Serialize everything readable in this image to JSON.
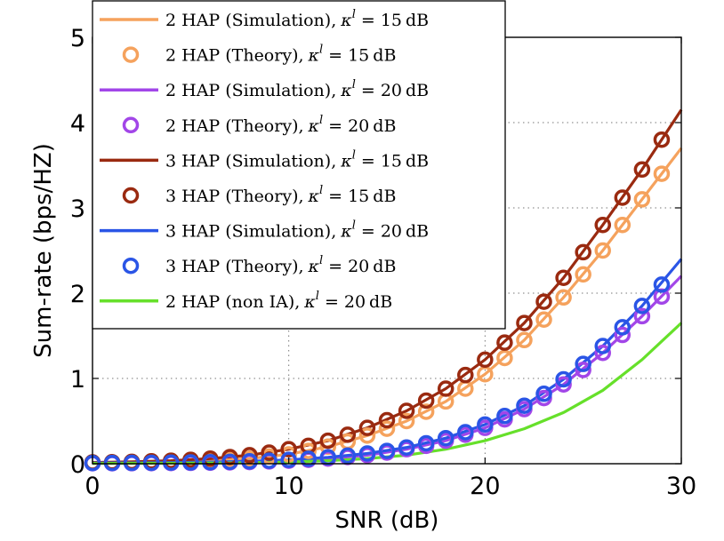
{
  "chart_data": {
    "type": "line",
    "xlabel": "SNR (dB)",
    "ylabel": "Sum-rate (bps/HZ)",
    "xlim": [
      0,
      30
    ],
    "ylim": [
      0,
      5
    ],
    "xticks": [
      "0",
      "10",
      "20",
      "30"
    ],
    "yticks": [
      "0",
      "1",
      "2",
      "3",
      "4",
      "5"
    ],
    "grid": "dotted",
    "legend_position": "top-left",
    "series": [
      {
        "name": "2 HAP (Simulation), κ^l = 15 dB",
        "color": "#f5a25d",
        "style": "line",
        "x": [
          0,
          2,
          4,
          6,
          8,
          10,
          12,
          14,
          16,
          18,
          20,
          22,
          24,
          26,
          28,
          30
        ],
        "values": [
          0.01,
          0.015,
          0.02,
          0.03,
          0.06,
          0.11,
          0.2,
          0.33,
          0.5,
          0.73,
          1.05,
          1.45,
          1.95,
          2.5,
          3.1,
          3.7
        ]
      },
      {
        "name": "2 HAP (Theory), κ^l = 15 dB",
        "color": "#f5a25d",
        "style": "marker",
        "x": [
          0,
          1,
          2,
          3,
          4,
          5,
          6,
          7,
          8,
          9,
          10,
          11,
          12,
          13,
          14,
          15,
          16,
          17,
          18,
          19,
          20,
          21,
          22,
          23,
          24,
          25,
          26,
          27,
          28,
          29
        ],
        "values": [
          0.01,
          0.012,
          0.015,
          0.018,
          0.02,
          0.025,
          0.03,
          0.045,
          0.06,
          0.085,
          0.11,
          0.15,
          0.2,
          0.26,
          0.33,
          0.41,
          0.5,
          0.61,
          0.73,
          0.88,
          1.05,
          1.24,
          1.45,
          1.69,
          1.95,
          2.22,
          2.5,
          2.8,
          3.1,
          3.4
        ]
      },
      {
        "name": "2 HAP (Simulation), κ^l = 20 dB",
        "color": "#a246e8",
        "style": "line",
        "x": [
          0,
          2,
          4,
          6,
          8,
          10,
          12,
          14,
          16,
          18,
          20,
          22,
          24,
          26,
          28,
          30
        ],
        "values": [
          0.005,
          0.006,
          0.008,
          0.012,
          0.02,
          0.035,
          0.06,
          0.1,
          0.17,
          0.27,
          0.42,
          0.64,
          0.93,
          1.3,
          1.73,
          2.2
        ]
      },
      {
        "name": "2 HAP (Theory), κ^l = 20 dB",
        "color": "#a246e8",
        "style": "marker",
        "x": [
          0,
          1,
          2,
          3,
          4,
          5,
          6,
          7,
          8,
          9,
          10,
          11,
          12,
          13,
          14,
          15,
          16,
          17,
          18,
          19,
          20,
          21,
          22,
          23,
          24,
          25,
          26,
          27,
          28,
          29
        ],
        "values": [
          0.005,
          0.0055,
          0.006,
          0.007,
          0.008,
          0.01,
          0.012,
          0.016,
          0.02,
          0.027,
          0.035,
          0.046,
          0.06,
          0.078,
          0.1,
          0.13,
          0.17,
          0.21,
          0.27,
          0.34,
          0.42,
          0.52,
          0.64,
          0.77,
          0.93,
          1.1,
          1.3,
          1.51,
          1.73,
          1.96
        ]
      },
      {
        "name": "3 HAP (Simulation), κ^l = 15 dB",
        "color": "#9a2a10",
        "style": "line",
        "x": [
          0,
          2,
          4,
          6,
          8,
          10,
          12,
          14,
          16,
          18,
          20,
          22,
          24,
          26,
          28,
          30
        ],
        "values": [
          0.015,
          0.022,
          0.035,
          0.06,
          0.1,
          0.17,
          0.27,
          0.42,
          0.62,
          0.88,
          1.22,
          1.65,
          2.18,
          2.8,
          3.45,
          4.15
        ]
      },
      {
        "name": "3 HAP (Theory), κ^l = 15 dB",
        "color": "#9a2a10",
        "style": "marker",
        "x": [
          0,
          1,
          2,
          3,
          4,
          5,
          6,
          7,
          8,
          9,
          10,
          11,
          12,
          13,
          14,
          15,
          16,
          17,
          18,
          19,
          20,
          21,
          22,
          23,
          24,
          25,
          26,
          27,
          28,
          29
        ],
        "values": [
          0.015,
          0.018,
          0.022,
          0.028,
          0.035,
          0.045,
          0.06,
          0.078,
          0.1,
          0.13,
          0.17,
          0.21,
          0.27,
          0.34,
          0.42,
          0.51,
          0.62,
          0.74,
          0.88,
          1.04,
          1.22,
          1.42,
          1.65,
          1.9,
          2.18,
          2.48,
          2.8,
          3.12,
          3.45,
          3.8
        ]
      },
      {
        "name": "3 HAP (Simulation), κ^l = 20 dB",
        "color": "#2a55e6",
        "style": "line",
        "x": [
          0,
          2,
          4,
          6,
          8,
          10,
          12,
          14,
          16,
          18,
          20,
          22,
          24,
          26,
          28,
          30
        ],
        "values": [
          0.008,
          0.01,
          0.013,
          0.018,
          0.028,
          0.045,
          0.075,
          0.12,
          0.19,
          0.3,
          0.46,
          0.68,
          0.99,
          1.38,
          1.85,
          2.4
        ]
      },
      {
        "name": "3 HAP (Theory), κ^l = 20 dB",
        "color": "#2a55e6",
        "style": "marker",
        "x": [
          0,
          1,
          2,
          3,
          4,
          5,
          6,
          7,
          8,
          9,
          10,
          11,
          12,
          13,
          14,
          15,
          16,
          17,
          18,
          19,
          20,
          21,
          22,
          23,
          24,
          25,
          26,
          27,
          28,
          29
        ],
        "values": [
          0.008,
          0.009,
          0.01,
          0.011,
          0.013,
          0.015,
          0.018,
          0.022,
          0.028,
          0.035,
          0.045,
          0.058,
          0.075,
          0.095,
          0.12,
          0.15,
          0.19,
          0.24,
          0.3,
          0.37,
          0.46,
          0.56,
          0.68,
          0.82,
          0.99,
          1.17,
          1.38,
          1.6,
          1.85,
          2.1
        ]
      },
      {
        "name": "2 HAP (non IA), κ^l = 20 dB",
        "color": "#66e02a",
        "style": "line",
        "x": [
          0,
          2,
          4,
          6,
          8,
          10,
          12,
          14,
          16,
          18,
          20,
          22,
          24,
          26,
          28,
          30
        ],
        "values": [
          0.004,
          0.005,
          0.006,
          0.008,
          0.012,
          0.02,
          0.035,
          0.06,
          0.1,
          0.17,
          0.27,
          0.41,
          0.6,
          0.86,
          1.22,
          1.65
        ]
      }
    ],
    "legend": [
      {
        "prefix": "2 HAP (Simulation),",
        "db": "15"
      },
      {
        "prefix": "2 HAP (Theory),",
        "db": "15"
      },
      {
        "prefix": "2 HAP (Simulation),",
        "db": "20"
      },
      {
        "prefix": "2 HAP (Theory),",
        "db": "20"
      },
      {
        "prefix": "3 HAP (Simulation),",
        "db": "15"
      },
      {
        "prefix": "3 HAP (Theory),",
        "db": "15"
      },
      {
        "prefix": "3 HAP (Simulation),",
        "db": "20"
      },
      {
        "prefix": "3 HAP (Theory),",
        "db": "20"
      },
      {
        "prefix": "2 HAP (non IA),",
        "db": "20"
      }
    ]
  }
}
